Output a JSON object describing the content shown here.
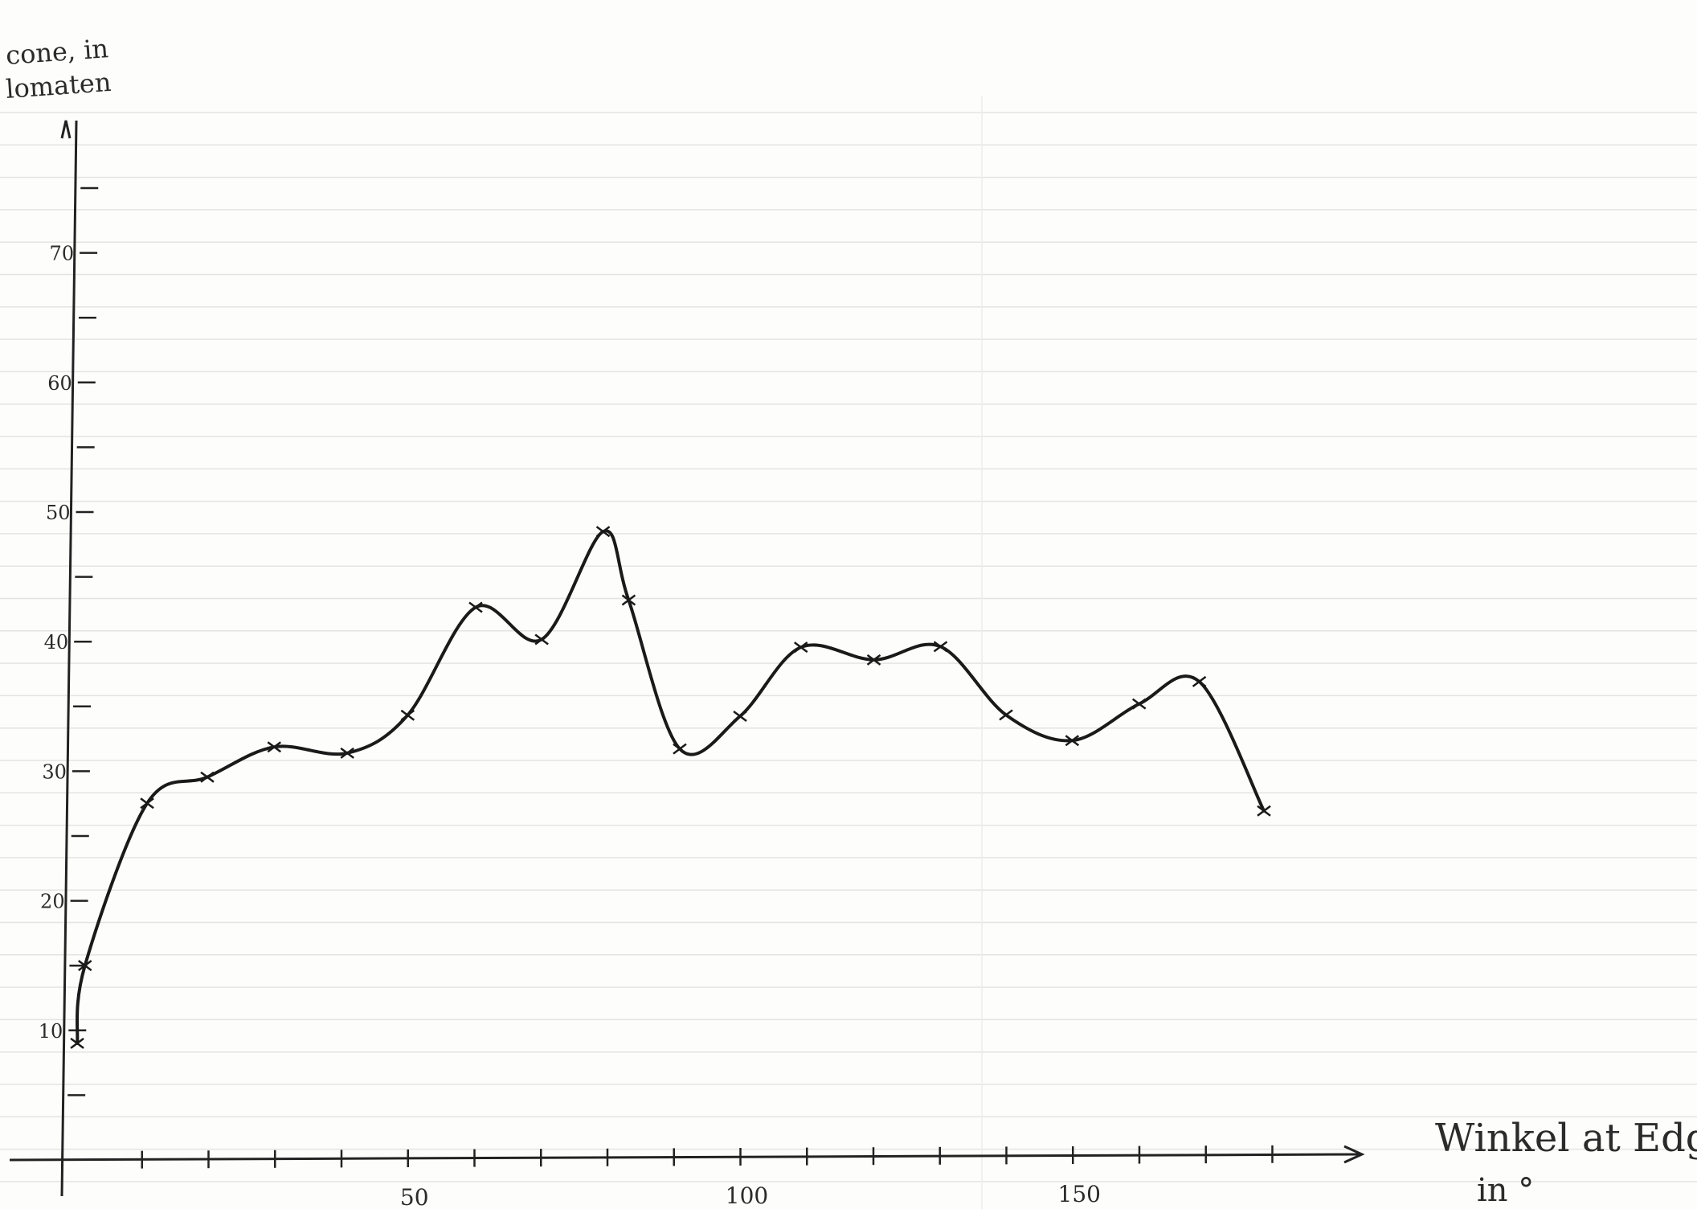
{
  "chart_data": {
    "type": "line",
    "xlabel": [
      "Winkel at Edge",
      "in °"
    ],
    "ylabel": [
      "cone, in",
      "lomaten"
    ],
    "xlim": [
      0,
      192
    ],
    "ylim": [
      0,
      80
    ],
    "x_tick_step": 10,
    "y_tick_step": 5,
    "x_labels": [
      {
        "value": 50,
        "text": "50"
      },
      {
        "value": 100,
        "text": "100"
      },
      {
        "value": 150,
        "text": "150"
      }
    ],
    "y_labels": [
      {
        "value": 10,
        "text": "10"
      },
      {
        "value": 20,
        "text": "20"
      },
      {
        "value": 30,
        "text": "30"
      },
      {
        "value": 40,
        "text": "40"
      },
      {
        "value": 50,
        "text": "50"
      },
      {
        "value": 60,
        "text": "60"
      },
      {
        "value": 70,
        "text": "70"
      }
    ],
    "grid": false,
    "marker": "x",
    "series": [
      {
        "color": "#1a1a1a",
        "x": [
          0,
          1,
          10,
          19,
          29,
          40,
          49,
          59,
          69,
          78,
          82,
          90,
          99,
          108,
          119,
          129,
          139,
          149,
          159,
          168,
          178
        ],
        "y": [
          9,
          15,
          27.5,
          29.5,
          31.8,
          31.3,
          34.2,
          42.5,
          40,
          48.3,
          43,
          31.5,
          34,
          39.3,
          38.3,
          39.3,
          34,
          32,
          34.8,
          36.5,
          26.5
        ]
      }
    ]
  }
}
